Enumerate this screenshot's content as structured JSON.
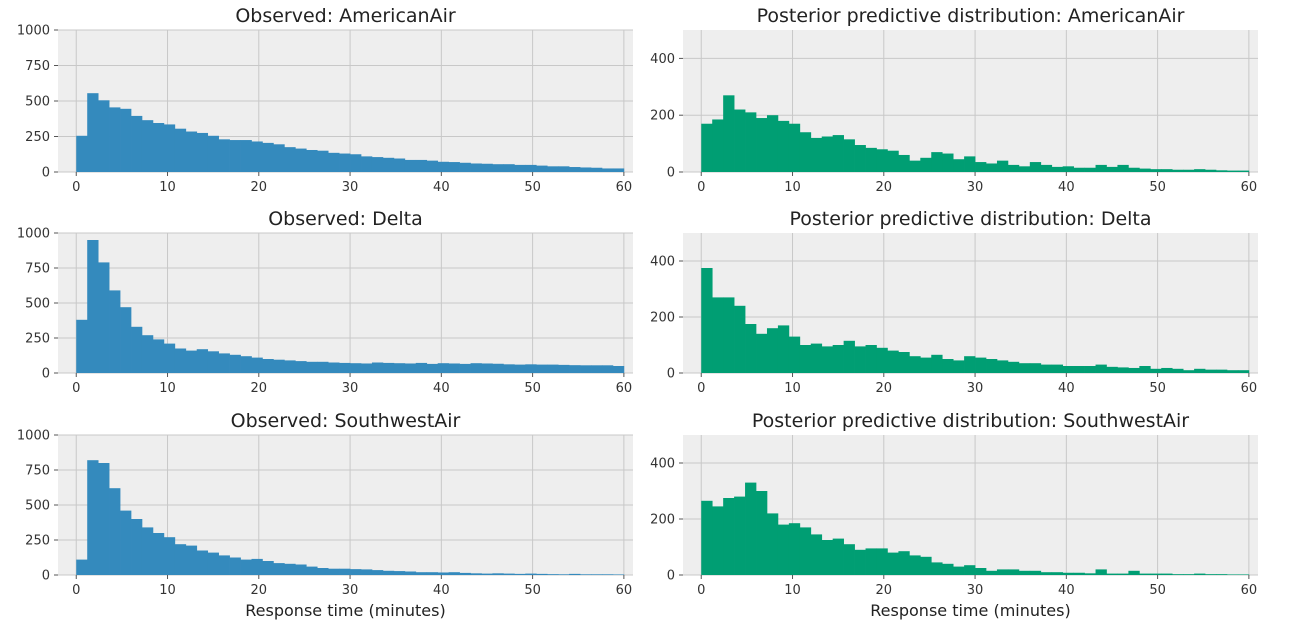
{
  "chart_data": [
    {
      "type": "bar",
      "title": "Observed: AmericanAir",
      "xlabel": "",
      "ylabel": "",
      "xlim": [
        -2,
        61
      ],
      "ylim": [
        0,
        1000
      ],
      "xticks": [
        0,
        10,
        20,
        30,
        40,
        50,
        60
      ],
      "yticks": [
        0,
        250,
        500,
        750,
        1000
      ],
      "grid": true,
      "color": "#348abd",
      "bin_width": 1.2,
      "values": [
        255,
        555,
        505,
        455,
        445,
        395,
        365,
        345,
        335,
        305,
        285,
        275,
        255,
        230,
        225,
        225,
        215,
        205,
        195,
        175,
        165,
        155,
        150,
        135,
        130,
        125,
        110,
        105,
        100,
        95,
        85,
        85,
        80,
        72,
        70,
        65,
        60,
        58,
        55,
        55,
        50,
        50,
        45,
        40,
        40,
        35,
        32,
        30,
        25,
        25
      ]
    },
    {
      "type": "bar",
      "title": "Posterior predictive distribution: AmericanAir",
      "xlabel": "",
      "ylabel": "",
      "xlim": [
        -2,
        61
      ],
      "ylim": [
        0,
        500
      ],
      "xticks": [
        0,
        10,
        20,
        30,
        40,
        50,
        60
      ],
      "yticks": [
        0,
        200,
        400
      ],
      "grid": true,
      "color": "#009e73",
      "bin_width": 1.2,
      "values": [
        170,
        185,
        270,
        220,
        210,
        190,
        200,
        180,
        170,
        140,
        120,
        125,
        130,
        115,
        95,
        85,
        80,
        75,
        60,
        40,
        50,
        70,
        65,
        45,
        55,
        35,
        30,
        40,
        25,
        20,
        35,
        25,
        18,
        20,
        15,
        15,
        25,
        18,
        25,
        15,
        12,
        10,
        10,
        8,
        8,
        10,
        8,
        6,
        5,
        5
      ]
    },
    {
      "type": "bar",
      "title": "Observed: Delta",
      "xlabel": "",
      "ylabel": "",
      "xlim": [
        -2,
        61
      ],
      "ylim": [
        0,
        1000
      ],
      "xticks": [
        0,
        10,
        20,
        30,
        40,
        50,
        60
      ],
      "yticks": [
        0,
        250,
        500,
        750,
        1000
      ],
      "grid": true,
      "color": "#348abd",
      "bin_width": 1.2,
      "values": [
        380,
        950,
        790,
        590,
        470,
        330,
        270,
        240,
        210,
        175,
        160,
        170,
        155,
        140,
        130,
        120,
        110,
        100,
        95,
        90,
        85,
        80,
        80,
        75,
        72,
        70,
        68,
        75,
        72,
        70,
        68,
        72,
        65,
        70,
        68,
        65,
        70,
        68,
        66,
        62,
        60,
        62,
        60,
        60,
        58,
        56,
        55,
        55,
        55,
        50
      ]
    },
    {
      "type": "bar",
      "title": "Posterior predictive distribution: Delta",
      "xlabel": "",
      "ylabel": "",
      "xlim": [
        -2,
        61
      ],
      "ylim": [
        0,
        500
      ],
      "xticks": [
        0,
        10,
        20,
        30,
        40,
        50,
        60
      ],
      "yticks": [
        0,
        200,
        400
      ],
      "grid": true,
      "color": "#009e73",
      "bin_width": 1.2,
      "values": [
        375,
        270,
        270,
        240,
        175,
        140,
        160,
        170,
        130,
        100,
        105,
        95,
        100,
        115,
        95,
        100,
        90,
        80,
        75,
        60,
        55,
        65,
        50,
        45,
        60,
        55,
        50,
        45,
        40,
        35,
        35,
        30,
        30,
        25,
        25,
        25,
        30,
        22,
        20,
        18,
        25,
        15,
        18,
        15,
        10,
        15,
        12,
        12,
        10,
        10
      ]
    },
    {
      "type": "bar",
      "title": "Observed: SouthwestAir",
      "xlabel": "Response time (minutes)",
      "ylabel": "",
      "xlim": [
        -2,
        61
      ],
      "ylim": [
        0,
        1000
      ],
      "xticks": [
        0,
        10,
        20,
        30,
        40,
        50,
        60
      ],
      "yticks": [
        0,
        250,
        500,
        750,
        1000
      ],
      "grid": true,
      "color": "#348abd",
      "bin_width": 1.2,
      "values": [
        110,
        820,
        800,
        620,
        460,
        400,
        340,
        300,
        270,
        220,
        210,
        175,
        160,
        140,
        125,
        110,
        115,
        100,
        85,
        80,
        75,
        60,
        50,
        45,
        45,
        42,
        40,
        35,
        30,
        28,
        25,
        20,
        20,
        18,
        20,
        15,
        12,
        10,
        12,
        10,
        8,
        10,
        8,
        6,
        5,
        8,
        5,
        5,
        5,
        4
      ]
    },
    {
      "type": "bar",
      "title": "Posterior predictive distribution: SouthwestAir",
      "xlabel": "Response time (minutes)",
      "ylabel": "",
      "xlim": [
        -2,
        61
      ],
      "ylim": [
        0,
        500
      ],
      "xticks": [
        0,
        10,
        20,
        30,
        40,
        50,
        60
      ],
      "yticks": [
        0,
        200,
        400
      ],
      "grid": true,
      "color": "#009e73",
      "bin_width": 1.2,
      "values": [
        265,
        245,
        275,
        280,
        330,
        300,
        220,
        180,
        185,
        170,
        145,
        125,
        130,
        110,
        90,
        95,
        95,
        80,
        85,
        70,
        65,
        45,
        40,
        30,
        35,
        25,
        15,
        20,
        20,
        15,
        15,
        10,
        10,
        8,
        8,
        6,
        20,
        5,
        5,
        15,
        5,
        5,
        5,
        3,
        3,
        5,
        3,
        3,
        2,
        2
      ]
    }
  ]
}
